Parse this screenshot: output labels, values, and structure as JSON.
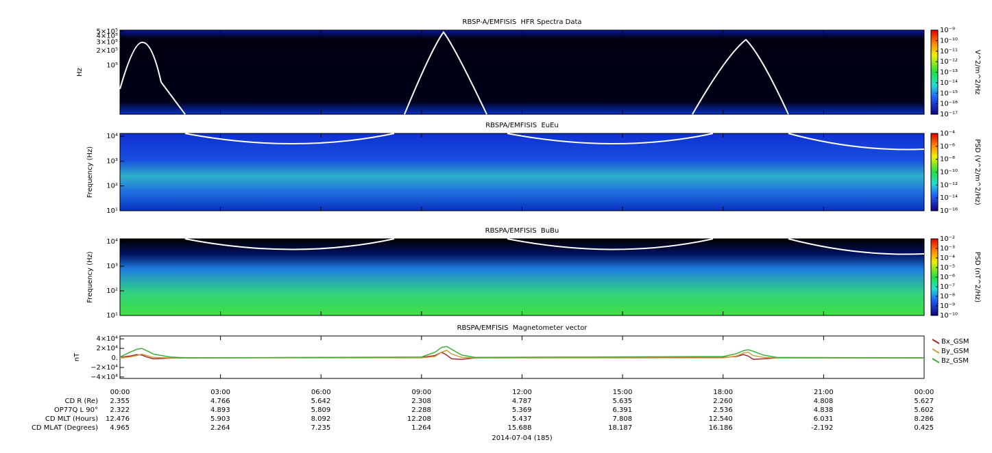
{
  "chart_data": [
    {
      "type": "spectrogram",
      "title": "RBSP-A/EMFISIS  HFR Spectra Data",
      "y_label": "Hz",
      "y_log": true,
      "ylim": [
        10000,
        530000
      ],
      "yticks": [
        {
          "value": 500000,
          "label": "5×10⁵"
        },
        {
          "value": 400000,
          "label": "4×10⁵"
        },
        {
          "value": 300000,
          "label": "3×10⁵"
        },
        {
          "value": 200000,
          "label": "2×10⁵"
        },
        {
          "value": 100000,
          "label": "10⁵"
        }
      ],
      "colorbar_label": "V^2/m^2/Hz",
      "zlim": [
        1e-17,
        1e-09
      ],
      "zticks": [
        {
          "value": 1e-09,
          "label": "10⁻⁹"
        },
        {
          "value": 1e-10,
          "label": "10⁻¹⁰"
        },
        {
          "value": 1e-11,
          "label": "10⁻¹¹"
        },
        {
          "value": 1e-12,
          "label": "10⁻¹²"
        },
        {
          "value": 1e-13,
          "label": "10⁻¹³"
        },
        {
          "value": 1e-14,
          "label": "10⁻¹⁴"
        },
        {
          "value": 1e-15,
          "label": "10⁻¹⁵"
        },
        {
          "value": 1e-16,
          "label": "10⁻¹⁶"
        },
        {
          "value": 1e-17,
          "label": "10⁻¹⁷"
        }
      ]
    },
    {
      "type": "spectrogram",
      "title": "RBSPA/EMFISIS  EuEu",
      "y_label": "Frequency (Hz)",
      "y_log": true,
      "ylim": [
        10,
        13000
      ],
      "yticks": [
        {
          "value": 10000,
          "label": "10⁴"
        },
        {
          "value": 1000,
          "label": "10³"
        },
        {
          "value": 100,
          "label": "10²"
        },
        {
          "value": 10,
          "label": "10¹"
        }
      ],
      "colorbar_label": "PSD (V^2/m^2/Hz)",
      "zlim": [
        1e-16,
        0.0001
      ],
      "zticks": [
        {
          "value": 0.0001,
          "label": "10⁻⁴"
        },
        {
          "value": 1e-06,
          "label": "10⁻⁶"
        },
        {
          "value": 1e-08,
          "label": "10⁻⁸"
        },
        {
          "value": 1e-10,
          "label": "10⁻¹⁰"
        },
        {
          "value": 1e-12,
          "label": "10⁻¹²"
        },
        {
          "value": 1e-14,
          "label": "10⁻¹⁴"
        },
        {
          "value": 1e-16,
          "label": "10⁻¹⁶"
        }
      ]
    },
    {
      "type": "spectrogram",
      "title": "RBSPA/EMFISIS  BuBu",
      "y_label": "Frequency (Hz)",
      "y_log": true,
      "ylim": [
        10,
        13000
      ],
      "yticks": [
        {
          "value": 10000,
          "label": "10⁴"
        },
        {
          "value": 1000,
          "label": "10³"
        },
        {
          "value": 100,
          "label": "10²"
        },
        {
          "value": 10,
          "label": "10¹"
        }
      ],
      "colorbar_label": "PSD (nT^2/Hz)",
      "zlim": [
        1e-10,
        0.01
      ],
      "zticks": [
        {
          "value": 0.01,
          "label": "10⁻²"
        },
        {
          "value": 0.001,
          "label": "10⁻³"
        },
        {
          "value": 0.0001,
          "label": "10⁻⁴"
        },
        {
          "value": 1e-05,
          "label": "10⁻⁵"
        },
        {
          "value": 1e-06,
          "label": "10⁻⁶"
        },
        {
          "value": 1e-07,
          "label": "10⁻⁷"
        },
        {
          "value": 1e-08,
          "label": "10⁻⁸"
        },
        {
          "value": 1e-09,
          "label": "10⁻⁹"
        },
        {
          "value": 1e-10,
          "label": "10⁻¹⁰"
        }
      ]
    },
    {
      "type": "line",
      "title": "RBSPA/EMFISIS  Magnetometer vector",
      "y_label": "nT",
      "ylim": [
        -43000,
        46000
      ],
      "yticks": [
        {
          "value": 40000,
          "label": "4×10⁴"
        },
        {
          "value": 20000,
          "label": "2×10⁴"
        },
        {
          "value": 0,
          "label": "0."
        },
        {
          "value": -20000,
          "label": "−2×10⁴"
        },
        {
          "value": -40000,
          "label": "−4×10⁴"
        }
      ],
      "x": [
        0,
        0.3,
        0.5,
        0.65,
        0.8,
        1.0,
        1.5,
        2,
        9,
        9.4,
        9.6,
        9.75,
        9.9,
        10.2,
        10.6,
        18,
        18.4,
        18.6,
        18.75,
        18.9,
        19.2,
        19.6,
        24
      ],
      "series": [
        {
          "name": "Bx_GSM",
          "color": "#a02828",
          "values": [
            1000,
            4000,
            7000,
            6000,
            2000,
            -2000,
            -500,
            0,
            1000,
            5000,
            12000,
            6000,
            -2000,
            -3000,
            0,
            1000,
            3000,
            7000,
            4000,
            -3000,
            -2000,
            0,
            0
          ]
        },
        {
          "name": "By_GSM",
          "color": "#c8a040",
          "values": [
            0,
            2000,
            5000,
            8000,
            5000,
            1000,
            0,
            0,
            0,
            3000,
            12000,
            16000,
            8000,
            1000,
            0,
            0,
            4000,
            10000,
            12000,
            5000,
            1000,
            0,
            0
          ]
        },
        {
          "name": "Bz_GSM",
          "color": "#38b038",
          "values": [
            2000,
            12000,
            18000,
            20000,
            15000,
            8000,
            2000,
            0,
            2000,
            12000,
            22000,
            24000,
            18000,
            6000,
            1000,
            3000,
            9000,
            15000,
            17000,
            14000,
            6000,
            1000,
            0
          ]
        }
      ]
    },
    {
      "type": "time_axis",
      "xlim": [
        0,
        24
      ],
      "xticks": [
        {
          "value": 0,
          "label": "00:00"
        },
        {
          "value": 3,
          "label": "03:00"
        },
        {
          "value": 6,
          "label": "06:00"
        },
        {
          "value": 9,
          "label": "09:00"
        },
        {
          "value": 12,
          "label": "12:00"
        },
        {
          "value": 15,
          "label": "15:00"
        },
        {
          "value": 18,
          "label": "18:00"
        },
        {
          "value": 21,
          "label": "21:00"
        },
        {
          "value": 24,
          "label": "00:00"
        }
      ],
      "date_label": "2014-07-04 (185)",
      "ephemeris": [
        {
          "label": "CD R (Re)",
          "values": [
            "2.355",
            "4.766",
            "5.642",
            "2.308",
            "4.787",
            "5.635",
            "2.260",
            "4.808",
            "5.627"
          ]
        },
        {
          "label": "OP77Q L 90°",
          "values": [
            "2.322",
            "4.893",
            "5.809",
            "2.288",
            "5.369",
            "6.391",
            "2.536",
            "4.838",
            "5.602"
          ]
        },
        {
          "label": "CD MLT (Hours)",
          "values": [
            "12.476",
            "5.903",
            "8.092",
            "12.208",
            "5.437",
            "7.808",
            "12.540",
            "6.031",
            "8.286"
          ]
        },
        {
          "label": "CD MLAT (Degrees)",
          "values": [
            "4.965",
            "2.264",
            "7.235",
            "1.264",
            "15.688",
            "18.187",
            "16.186",
            "-2.192",
            "0.425"
          ]
        }
      ]
    }
  ]
}
